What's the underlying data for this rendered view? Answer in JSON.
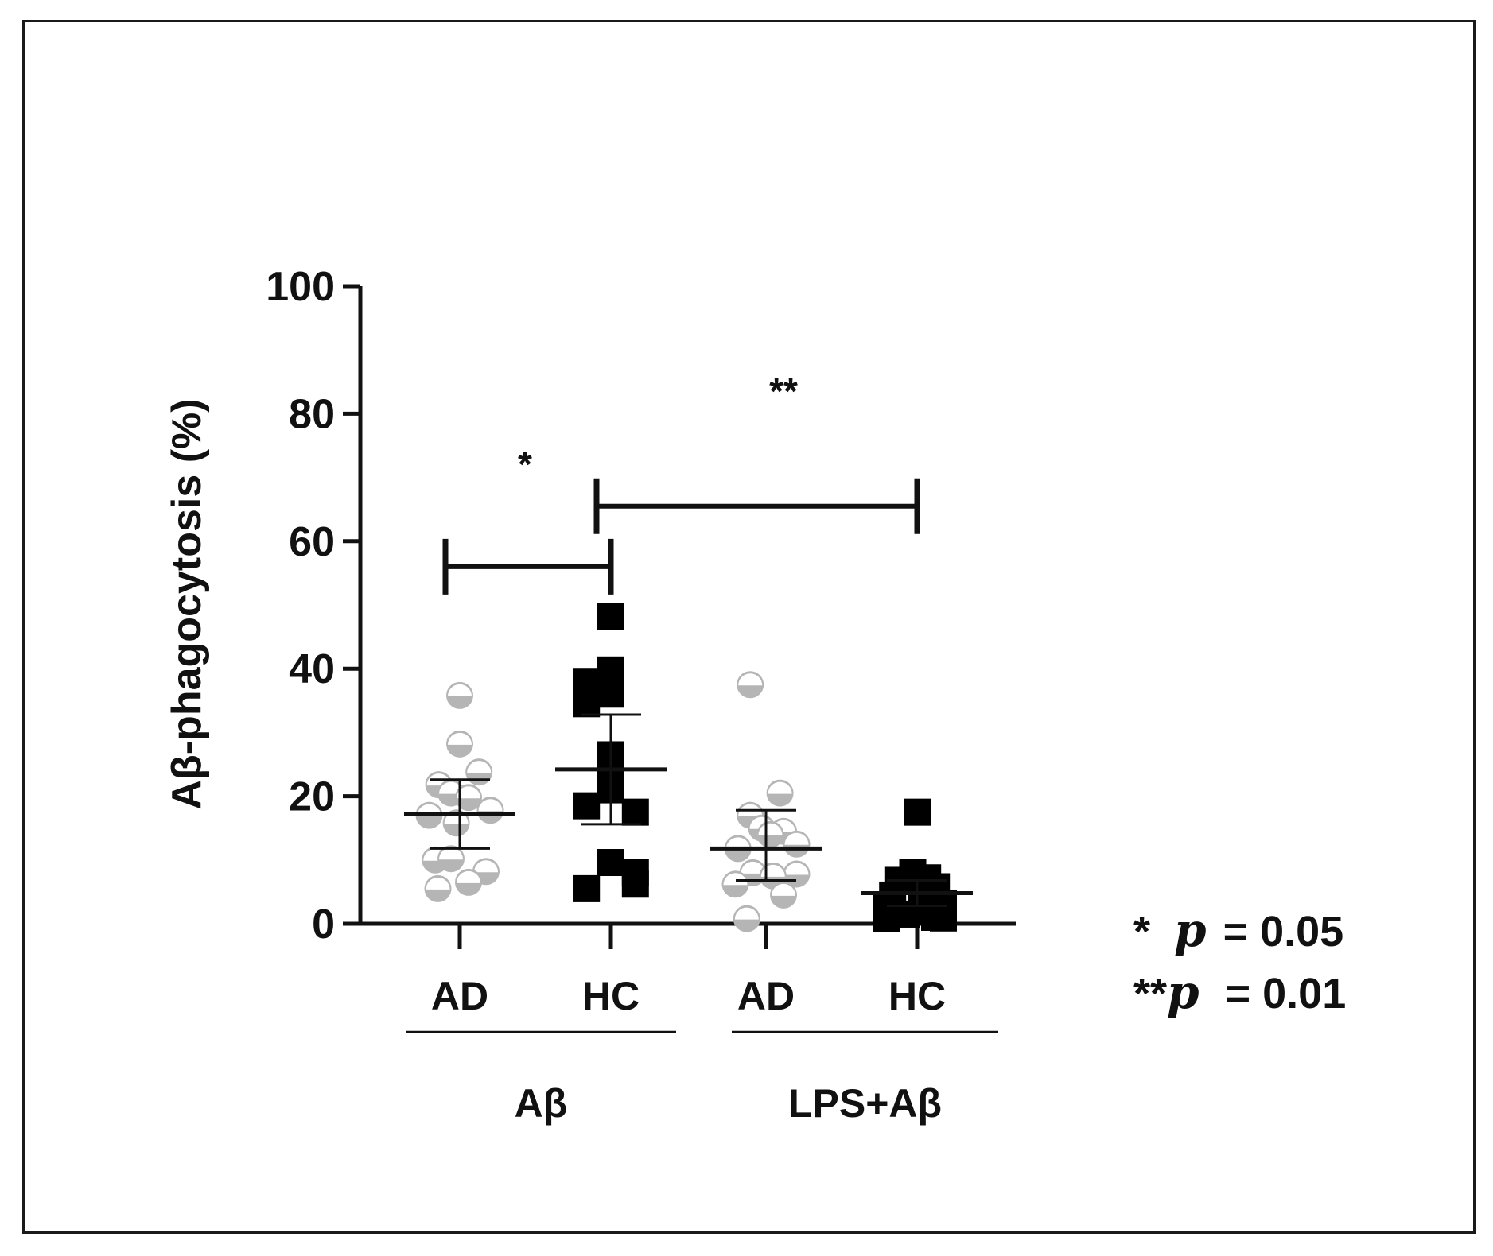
{
  "chart_data": {
    "type": "scatter",
    "ylabel": "Aβ-phagocytosis (%)",
    "ylim": [
      0,
      100
    ],
    "yticks": [
      0,
      20,
      40,
      60,
      80,
      100
    ],
    "categories": [
      "AD",
      "HC",
      "AD",
      "HC"
    ],
    "groups": [
      {
        "label": "Aβ",
        "categories": [
          0,
          1
        ]
      },
      {
        "label": "LPS+Aβ",
        "categories": [
          2,
          3
        ]
      }
    ],
    "series": [
      {
        "category_index": 0,
        "label": "AD",
        "marker": "half-circle",
        "color": "#b5b5b5",
        "points": [
          {
            "o": 0,
            "y": 35.8
          },
          {
            "o": 0,
            "y": 28.2
          },
          {
            "o": -0.24,
            "y": 21.8
          },
          {
            "o": 0.22,
            "y": 23.8
          },
          {
            "o": -0.1,
            "y": 20.5
          },
          {
            "o": 0.1,
            "y": 19.8
          },
          {
            "o": 0.35,
            "y": 17.8
          },
          {
            "o": -0.35,
            "y": 17.0
          },
          {
            "o": -0.04,
            "y": 15.8
          },
          {
            "o": -0.28,
            "y": 10.0
          },
          {
            "o": -0.1,
            "y": 10.2
          },
          {
            "o": 0.3,
            "y": 8.2
          },
          {
            "o": -0.25,
            "y": 5.5
          },
          {
            "o": 0.1,
            "y": 6.5
          }
        ],
        "mean": 17.2,
        "error_low": 11.8,
        "error_high": 22.6
      },
      {
        "category_index": 1,
        "label": "HC",
        "marker": "square",
        "color": "#000000",
        "points": [
          {
            "o": 0,
            "y": 48.2
          },
          {
            "o": 0,
            "y": 39.8
          },
          {
            "o": -0.28,
            "y": 38.0
          },
          {
            "o": -0.28,
            "y": 34.5
          },
          {
            "o": 0,
            "y": 36.0
          },
          {
            "o": 0,
            "y": 26.5
          },
          {
            "o": 0,
            "y": 22.5
          },
          {
            "o": 0,
            "y": 21.0
          },
          {
            "o": -0.28,
            "y": 18.5
          },
          {
            "o": 0.28,
            "y": 17.5
          },
          {
            "o": 0,
            "y": 9.6
          },
          {
            "o": 0.28,
            "y": 8.0
          },
          {
            "o": 0.28,
            "y": 6.2
          },
          {
            "o": -0.28,
            "y": 5.5
          }
        ],
        "mean": 24.2,
        "error_low": 15.6,
        "error_high": 32.8
      },
      {
        "category_index": 2,
        "label": "AD",
        "marker": "half-circle",
        "color": "#b5b5b5",
        "points": [
          {
            "o": -0.18,
            "y": 37.5
          },
          {
            "o": 0.16,
            "y": 20.5
          },
          {
            "o": -0.18,
            "y": 17.0
          },
          {
            "o": 0.2,
            "y": 14.5
          },
          {
            "o": -0.05,
            "y": 15.0
          },
          {
            "o": 0.05,
            "y": 14.0
          },
          {
            "o": 0.35,
            "y": 12.5
          },
          {
            "o": -0.32,
            "y": 11.8
          },
          {
            "o": 0.35,
            "y": 7.8
          },
          {
            "o": -0.15,
            "y": 8.0
          },
          {
            "o": 0.08,
            "y": 7.5
          },
          {
            "o": -0.35,
            "y": 6.2
          },
          {
            "o": 0.2,
            "y": 4.5
          },
          {
            "o": -0.22,
            "y": 0.8
          }
        ],
        "mean": 11.8,
        "error_low": 6.8,
        "error_high": 17.8
      },
      {
        "category_index": 3,
        "label": "HC",
        "marker": "square",
        "color": "#000000",
        "points": [
          {
            "o": 0,
            "y": 17.5
          },
          {
            "o": -0.05,
            "y": 8.0
          },
          {
            "o": 0.12,
            "y": 7.2
          },
          {
            "o": -0.22,
            "y": 6.8
          },
          {
            "o": 0.22,
            "y": 5.8
          },
          {
            "o": -0.28,
            "y": 4.5
          },
          {
            "o": 0.05,
            "y": 4.0
          },
          {
            "o": -0.35,
            "y": 2.8
          },
          {
            "o": 0.3,
            "y": 3.2
          },
          {
            "o": 0.08,
            "y": 2.0
          },
          {
            "o": -0.12,
            "y": 1.5
          },
          {
            "o": 0.2,
            "y": 1.0
          },
          {
            "o": -0.35,
            "y": 0.8
          },
          {
            "o": 0.3,
            "y": 0.9
          }
        ],
        "mean": 4.8,
        "error_low": 2.8,
        "error_high": 6.8
      }
    ],
    "significance": [
      {
        "from": 0,
        "to": 1,
        "y": 56,
        "label": "*"
      },
      {
        "from": 1,
        "to": 3,
        "y": 65.5,
        "label": "**"
      }
    ],
    "legend": [
      {
        "stars": "*",
        "p": "p",
        "value": " = 0.05"
      },
      {
        "stars": "**",
        "p": "p",
        "value": " = 0.01"
      }
    ]
  }
}
